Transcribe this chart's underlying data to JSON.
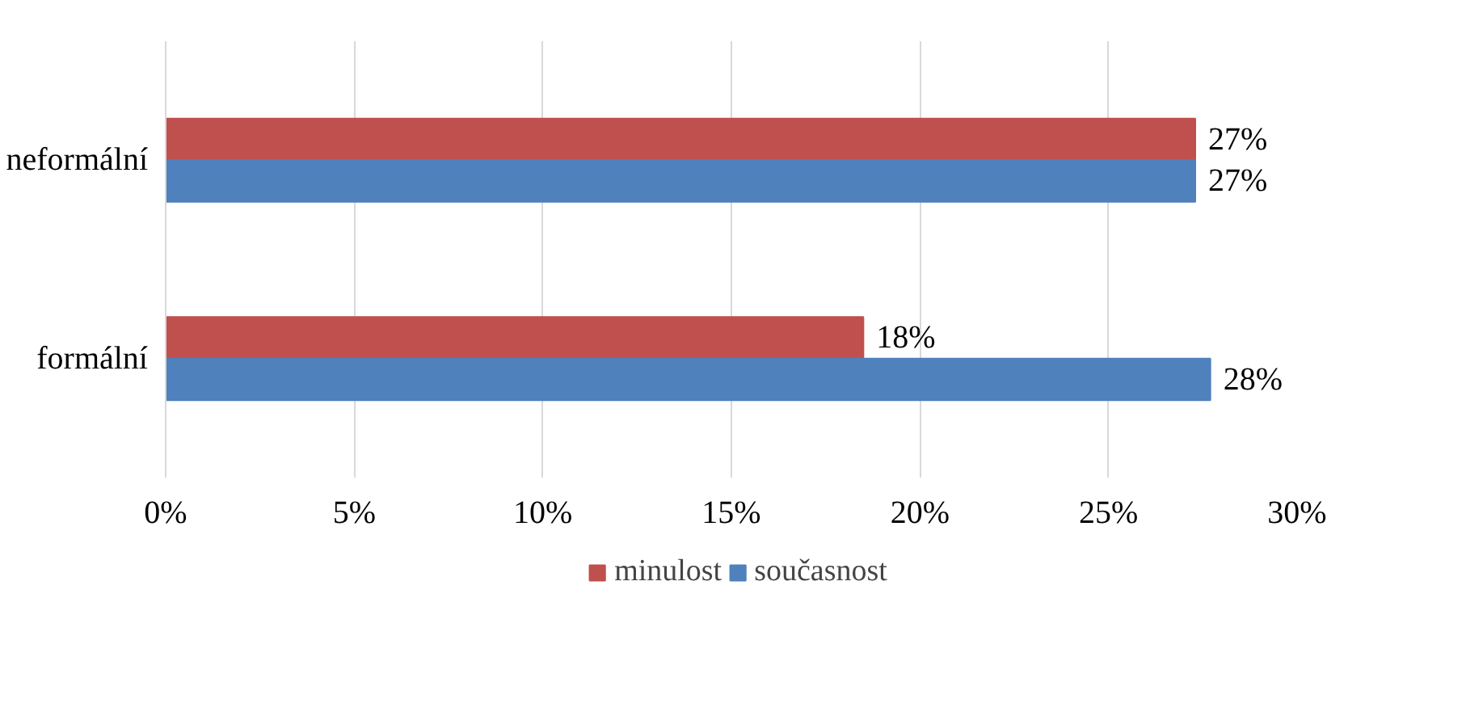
{
  "chart_data": {
    "type": "bar",
    "orientation": "horizontal",
    "categories": [
      "neformální",
      "formální"
    ],
    "series": [
      {
        "name": "minulost",
        "color": "#c0504d",
        "values": [
          27.3,
          18.5
        ],
        "value_labels": [
          "27%",
          "18%"
        ]
      },
      {
        "name": "současnost",
        "color": "#4f81bd",
        "values": [
          27.3,
          27.7
        ],
        "value_labels": [
          "27%",
          "28%"
        ]
      }
    ],
    "xlim": [
      0,
      30
    ],
    "xticks": [
      {
        "value": 0,
        "label": "0%"
      },
      {
        "value": 5,
        "label": "5%"
      },
      {
        "value": 10,
        "label": "10%"
      },
      {
        "value": 15,
        "label": "15%"
      },
      {
        "value": 20,
        "label": "20%"
      },
      {
        "value": 25,
        "label": "25%"
      },
      {
        "value": 30,
        "label": "30%"
      }
    ],
    "grid": "x",
    "legend": "bottom"
  }
}
